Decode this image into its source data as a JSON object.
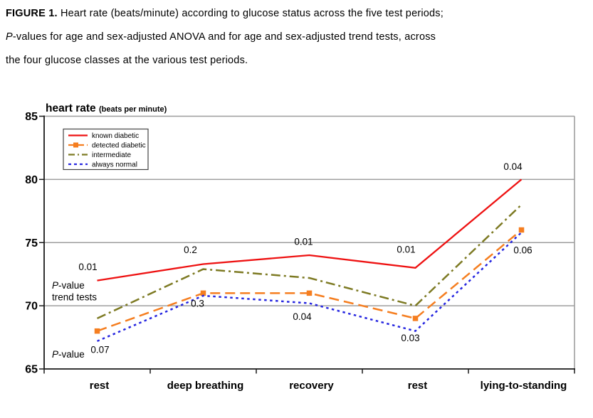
{
  "caption": {
    "figure_label": "FIGURE 1.",
    "line1": "Heart rate (beats/minute) according to glucose status across the five test periods;",
    "line2_italic": "P",
    "line2": "-values for age and sex-adjusted ANOVA and for age and sex-adjusted trend tests, across",
    "line3": "the four glucose classes at the various test periods."
  },
  "chart_data": {
    "type": "line",
    "title": "heart rate",
    "title_suffix": "(beats per minute)",
    "categories": [
      "rest",
      "deep breathing",
      "recovery",
      "rest",
      "lying-to-standing"
    ],
    "ylim": [
      65,
      85
    ],
    "yticks": [
      65,
      70,
      75,
      80,
      85
    ],
    "grid": true,
    "legend_position": "top-left",
    "series": [
      {
        "name": "known diabetic",
        "color": "#ee1111",
        "line_style": "solid",
        "marker": "none",
        "values": [
          72,
          73.3,
          74,
          73,
          80
        ]
      },
      {
        "name": "detected diabetic",
        "color": "#f57e20",
        "line_style": "dashed",
        "marker": "square",
        "values": [
          68,
          71,
          71,
          69,
          76
        ]
      },
      {
        "name": "intermediate",
        "color": "#7d7a23",
        "line_style": "dashdot",
        "marker": "none",
        "values": [
          69,
          72.9,
          72.2,
          70,
          78
        ]
      },
      {
        "name": "always normal",
        "color": "#2626e0",
        "line_style": "dotted",
        "marker": "none",
        "values": [
          67.2,
          70.8,
          70.2,
          68,
          75.8
        ]
      }
    ],
    "annotations": {
      "trend_tests_label_line1": "P-value",
      "trend_tests_label_line2": "trend tests",
      "trend_tests_values": [
        "0.01",
        "0.2",
        "0.01",
        "0.01",
        "0.04"
      ],
      "anova_label": "P-value",
      "anova_values": [
        "0.07",
        "0.3",
        "0.04",
        "0.03",
        "0.06"
      ]
    },
    "colors": {
      "grid": "#9e9e9e",
      "axis": "#1a1a1a",
      "text": "#000000",
      "legend_border": "#444444"
    }
  }
}
